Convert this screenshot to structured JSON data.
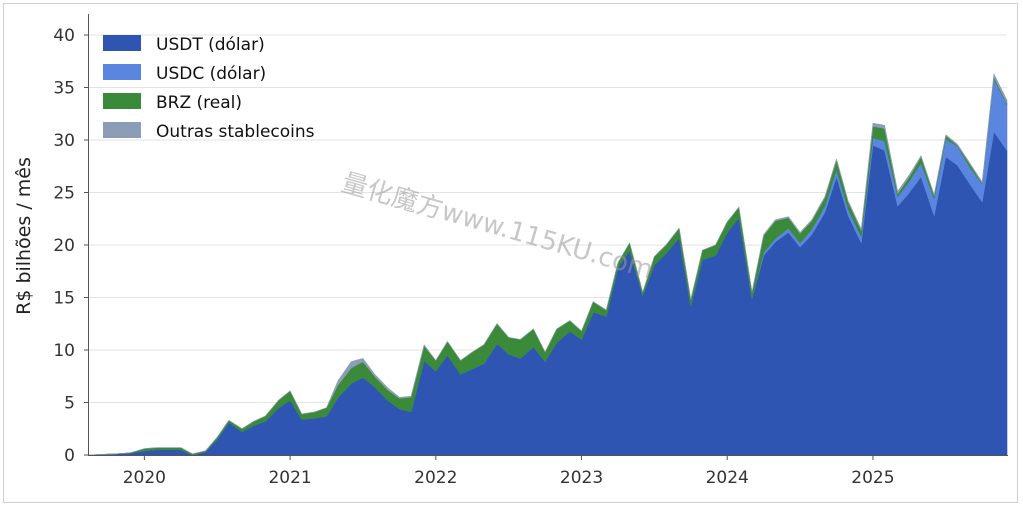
{
  "watermark": "量化魔方www.115KU.com",
  "chart_data": {
    "type": "area",
    "stacked": true,
    "ylabel": "R$ bilhões / mês",
    "xlabel": "",
    "ylim": [
      0,
      42
    ],
    "yticks": [
      0,
      5,
      10,
      15,
      20,
      25,
      30,
      35,
      40
    ],
    "xlim": [
      2019.62,
      2025.92
    ],
    "xticks": [
      2020,
      2021,
      2022,
      2023,
      2024,
      2025
    ],
    "grid": "horizontal",
    "legend_position": "top-left",
    "x": [
      2019.62,
      2019.7,
      2019.8,
      2019.9,
      2020.0,
      2020.08,
      2020.17,
      2020.25,
      2020.33,
      2020.42,
      2020.5,
      2020.58,
      2020.67,
      2020.75,
      2020.83,
      2020.92,
      2021.0,
      2021.08,
      2021.17,
      2021.25,
      2021.33,
      2021.42,
      2021.5,
      2021.58,
      2021.67,
      2021.75,
      2021.83,
      2021.92,
      2022.0,
      2022.08,
      2022.17,
      2022.25,
      2022.33,
      2022.42,
      2022.5,
      2022.58,
      2022.67,
      2022.75,
      2022.83,
      2022.92,
      2023.0,
      2023.08,
      2023.17,
      2023.25,
      2023.33,
      2023.42,
      2023.5,
      2023.58,
      2023.67,
      2023.75,
      2023.83,
      2023.92,
      2024.0,
      2024.08,
      2024.17,
      2024.25,
      2024.33,
      2024.42,
      2024.5,
      2024.58,
      2024.67,
      2024.75,
      2024.83,
      2024.92,
      2025.0,
      2025.08,
      2025.17,
      2025.25,
      2025.33,
      2025.42,
      2025.5,
      2025.58,
      2025.67,
      2025.75,
      2025.83,
      2025.92
    ],
    "series": [
      {
        "name": "USDT (dólar)",
        "color": "#2f55b3",
        "values": [
          0.0,
          0.05,
          0.1,
          0.2,
          0.4,
          0.5,
          0.5,
          0.5,
          0.0,
          0.3,
          1.5,
          3.1,
          2.2,
          2.8,
          3.2,
          4.5,
          5.2,
          3.4,
          3.5,
          3.7,
          5.5,
          6.8,
          7.4,
          6.5,
          5.2,
          4.4,
          4.1,
          9.0,
          8.0,
          9.5,
          7.7,
          8.2,
          8.7,
          10.6,
          9.6,
          9.2,
          10.3,
          8.9,
          10.7,
          11.8,
          11.0,
          13.6,
          13.2,
          17.8,
          19.5,
          15.2,
          18.1,
          19.2,
          20.7,
          14.2,
          18.6,
          19.0,
          21.2,
          22.6,
          14.9,
          19.0,
          20.3,
          21.2,
          19.8,
          21.0,
          23.1,
          26.5,
          22.8,
          20.2,
          29.5,
          29.0,
          23.7,
          25.0,
          26.5,
          22.8,
          28.4,
          27.6,
          25.7,
          24.1,
          30.8,
          29.0
        ]
      },
      {
        "name": "USDC (dólar)",
        "color": "#5b86e0",
        "values": [
          0,
          0,
          0,
          0,
          0,
          0,
          0,
          0,
          0,
          0,
          0,
          0,
          0,
          0,
          0,
          0,
          0,
          0,
          0,
          0,
          0,
          0,
          0,
          0,
          0,
          0,
          0,
          0,
          0,
          0,
          0,
          0,
          0,
          0,
          0,
          0,
          0,
          0,
          0,
          0,
          0,
          0,
          0,
          0,
          0,
          0,
          0,
          0,
          0,
          0,
          0,
          0,
          0,
          0,
          0,
          0.3,
          0.3,
          0.4,
          0.4,
          0.5,
          0.6,
          0.7,
          0.6,
          0.6,
          0.7,
          0.9,
          0.9,
          1.1,
          1.3,
          1.6,
          1.7,
          1.8,
          1.6,
          1.7,
          5.0,
          4.4
        ]
      },
      {
        "name": "BRZ (real)",
        "color": "#3a8a3a",
        "values": [
          0,
          0,
          0,
          0,
          0.2,
          0.2,
          0.2,
          0.2,
          0.1,
          0.1,
          0.2,
          0.2,
          0.3,
          0.4,
          0.5,
          0.7,
          0.9,
          0.5,
          0.6,
          0.8,
          1.2,
          1.5,
          1.5,
          1.0,
          1.0,
          1.0,
          1.4,
          1.4,
          1.0,
          1.3,
          1.3,
          1.6,
          1.8,
          1.9,
          1.6,
          1.8,
          1.7,
          0.9,
          1.3,
          1.0,
          0.8,
          1.0,
          0.6,
          0.5,
          0.7,
          0.3,
          0.8,
          0.8,
          0.9,
          0.6,
          0.9,
          1.0,
          1.0,
          1.0,
          0.6,
          1.6,
          1.7,
          1.0,
          0.9,
          0.8,
          0.8,
          0.9,
          0.7,
          0.6,
          1.1,
          1.2,
          0.3,
          0.4,
          0.6,
          0.3,
          0.3,
          0.1,
          0.3,
          0.1,
          0.2,
          0.1
        ]
      },
      {
        "name": "Outras stablecoins",
        "color": "#8d9db8",
        "values": [
          0,
          0,
          0,
          0,
          0,
          0,
          0,
          0,
          0,
          0,
          0,
          0,
          0,
          0,
          0,
          0,
          0,
          0,
          0,
          0,
          0.4,
          0.6,
          0.3,
          0.2,
          0.2,
          0.1,
          0.1,
          0.1,
          0,
          0,
          0,
          0,
          0,
          0,
          0,
          0,
          0,
          0,
          0,
          0,
          0,
          0,
          0,
          0,
          0,
          0,
          0,
          0,
          0,
          0,
          0,
          0,
          0,
          0,
          0,
          0.1,
          0.1,
          0.1,
          0.1,
          0.1,
          0.1,
          0.1,
          0.1,
          0.1,
          0.3,
          0.3,
          0.2,
          0.2,
          0.1,
          0.1,
          0.1,
          0.1,
          0.1,
          0.1,
          0.3,
          0.3
        ]
      }
    ]
  }
}
